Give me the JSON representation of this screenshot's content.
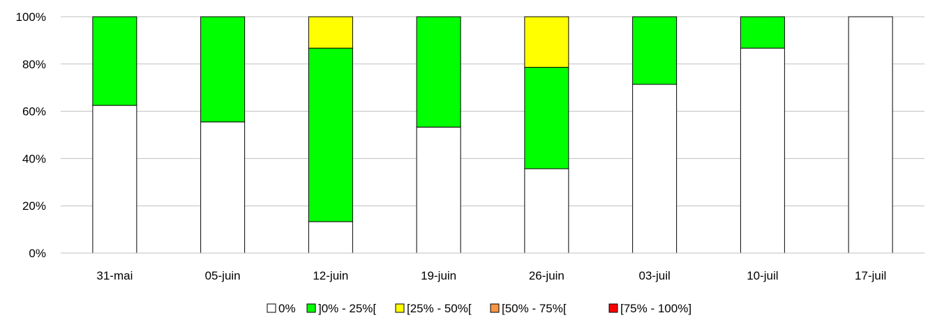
{
  "chart_data": {
    "type": "bar",
    "stacked": true,
    "percent_stacked": true,
    "categories": [
      "31-mai",
      "05-juin",
      "12-juin",
      "19-juin",
      "26-juin",
      "03-juil",
      "10-juil",
      "17-juil"
    ],
    "series": [
      {
        "name": "0%",
        "color": "#FFFFFF",
        "values": [
          62.5,
          55.5,
          13.3,
          53.3,
          35.7,
          71.4,
          86.7,
          100
        ]
      },
      {
        "name": "]0% - 25%[",
        "color": "#00FF00",
        "values": [
          37.5,
          44.5,
          73.4,
          46.7,
          42.9,
          28.6,
          13.3,
          0
        ]
      },
      {
        "name": "[25% - 50%[",
        "color": "#FFFF00",
        "values": [
          0,
          0,
          13.3,
          0,
          21.4,
          0,
          0,
          0
        ]
      },
      {
        "name": "[50% - 75%[",
        "color": "#F79646",
        "values": [
          0,
          0,
          0,
          0,
          0,
          0,
          0,
          0
        ]
      },
      {
        "name": "[75% - 100%]",
        "color": "#FF0000",
        "values": [
          0,
          0,
          0,
          0,
          0,
          0,
          0,
          0
        ]
      }
    ],
    "y_ticks": [
      "0%",
      "20%",
      "40%",
      "60%",
      "80%",
      "100%"
    ],
    "ylim": [
      0,
      100
    ],
    "grid": true,
    "legend_position": "bottom"
  }
}
